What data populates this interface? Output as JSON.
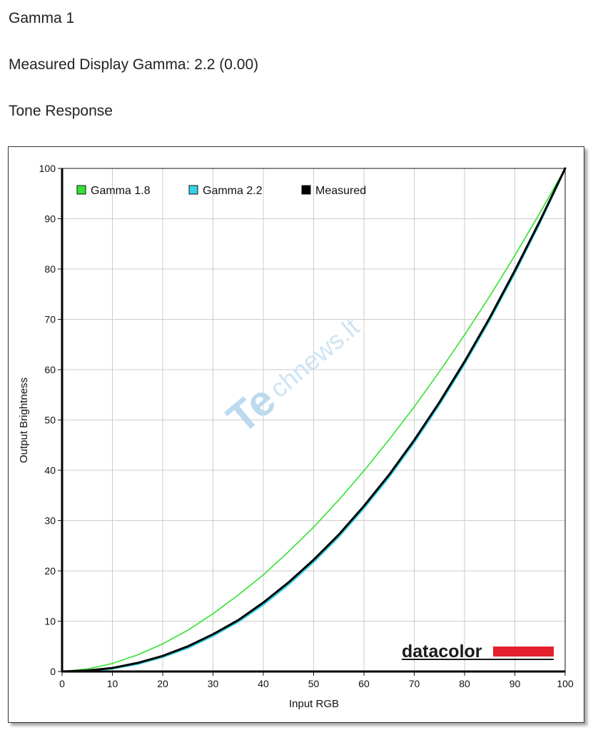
{
  "header": {
    "title": "Gamma 1",
    "measured_gamma": "Measured Display Gamma: 2.2 (0.00)",
    "section": "Tone Response"
  },
  "watermark": {
    "prefix": "Te",
    "suffix": "chnews.lt"
  },
  "logo": {
    "text": "datacolor",
    "bar_color": "#e3222d"
  },
  "chart_data": {
    "type": "line",
    "xlabel": "Input RGB",
    "ylabel": "Output Brightness",
    "xlim": [
      0,
      100
    ],
    "ylim": [
      0,
      100
    ],
    "x_ticks": [
      0,
      10,
      20,
      30,
      40,
      50,
      60,
      70,
      80,
      90,
      100
    ],
    "y_ticks": [
      0,
      10,
      20,
      30,
      40,
      50,
      60,
      70,
      80,
      90,
      100
    ],
    "grid": true,
    "legend_position": "top-left",
    "x": [
      0,
      5,
      10,
      15,
      20,
      25,
      30,
      35,
      40,
      45,
      50,
      55,
      60,
      65,
      70,
      75,
      80,
      85,
      90,
      95,
      100
    ],
    "series": [
      {
        "name": "Gamma 1.8",
        "color": "#33e133",
        "values": [
          0,
          0.5,
          1.6,
          3.3,
          5.5,
          8.2,
          11.5,
          15.2,
          19.2,
          23.8,
          28.7,
          34.1,
          39.9,
          46.1,
          52.6,
          59.6,
          66.9,
          74.6,
          82.7,
          91.2,
          100
        ]
      },
      {
        "name": "Gamma 2.2",
        "color": "#33d4e3",
        "values": [
          0,
          0.1,
          0.6,
          1.5,
          2.9,
          4.7,
          7.1,
          9.9,
          13.3,
          17.3,
          21.8,
          26.8,
          32.5,
          38.7,
          45.6,
          53.1,
          61.2,
          69.9,
          79.3,
          89.3,
          100
        ]
      },
      {
        "name": "Measured",
        "color": "#000000",
        "values": [
          0,
          0.2,
          0.7,
          1.7,
          3.1,
          5.0,
          7.4,
          10.2,
          13.7,
          17.7,
          22.2,
          27.2,
          32.9,
          39.1,
          46.0,
          53.5,
          61.6,
          70.3,
          79.7,
          89.6,
          100
        ]
      }
    ]
  }
}
